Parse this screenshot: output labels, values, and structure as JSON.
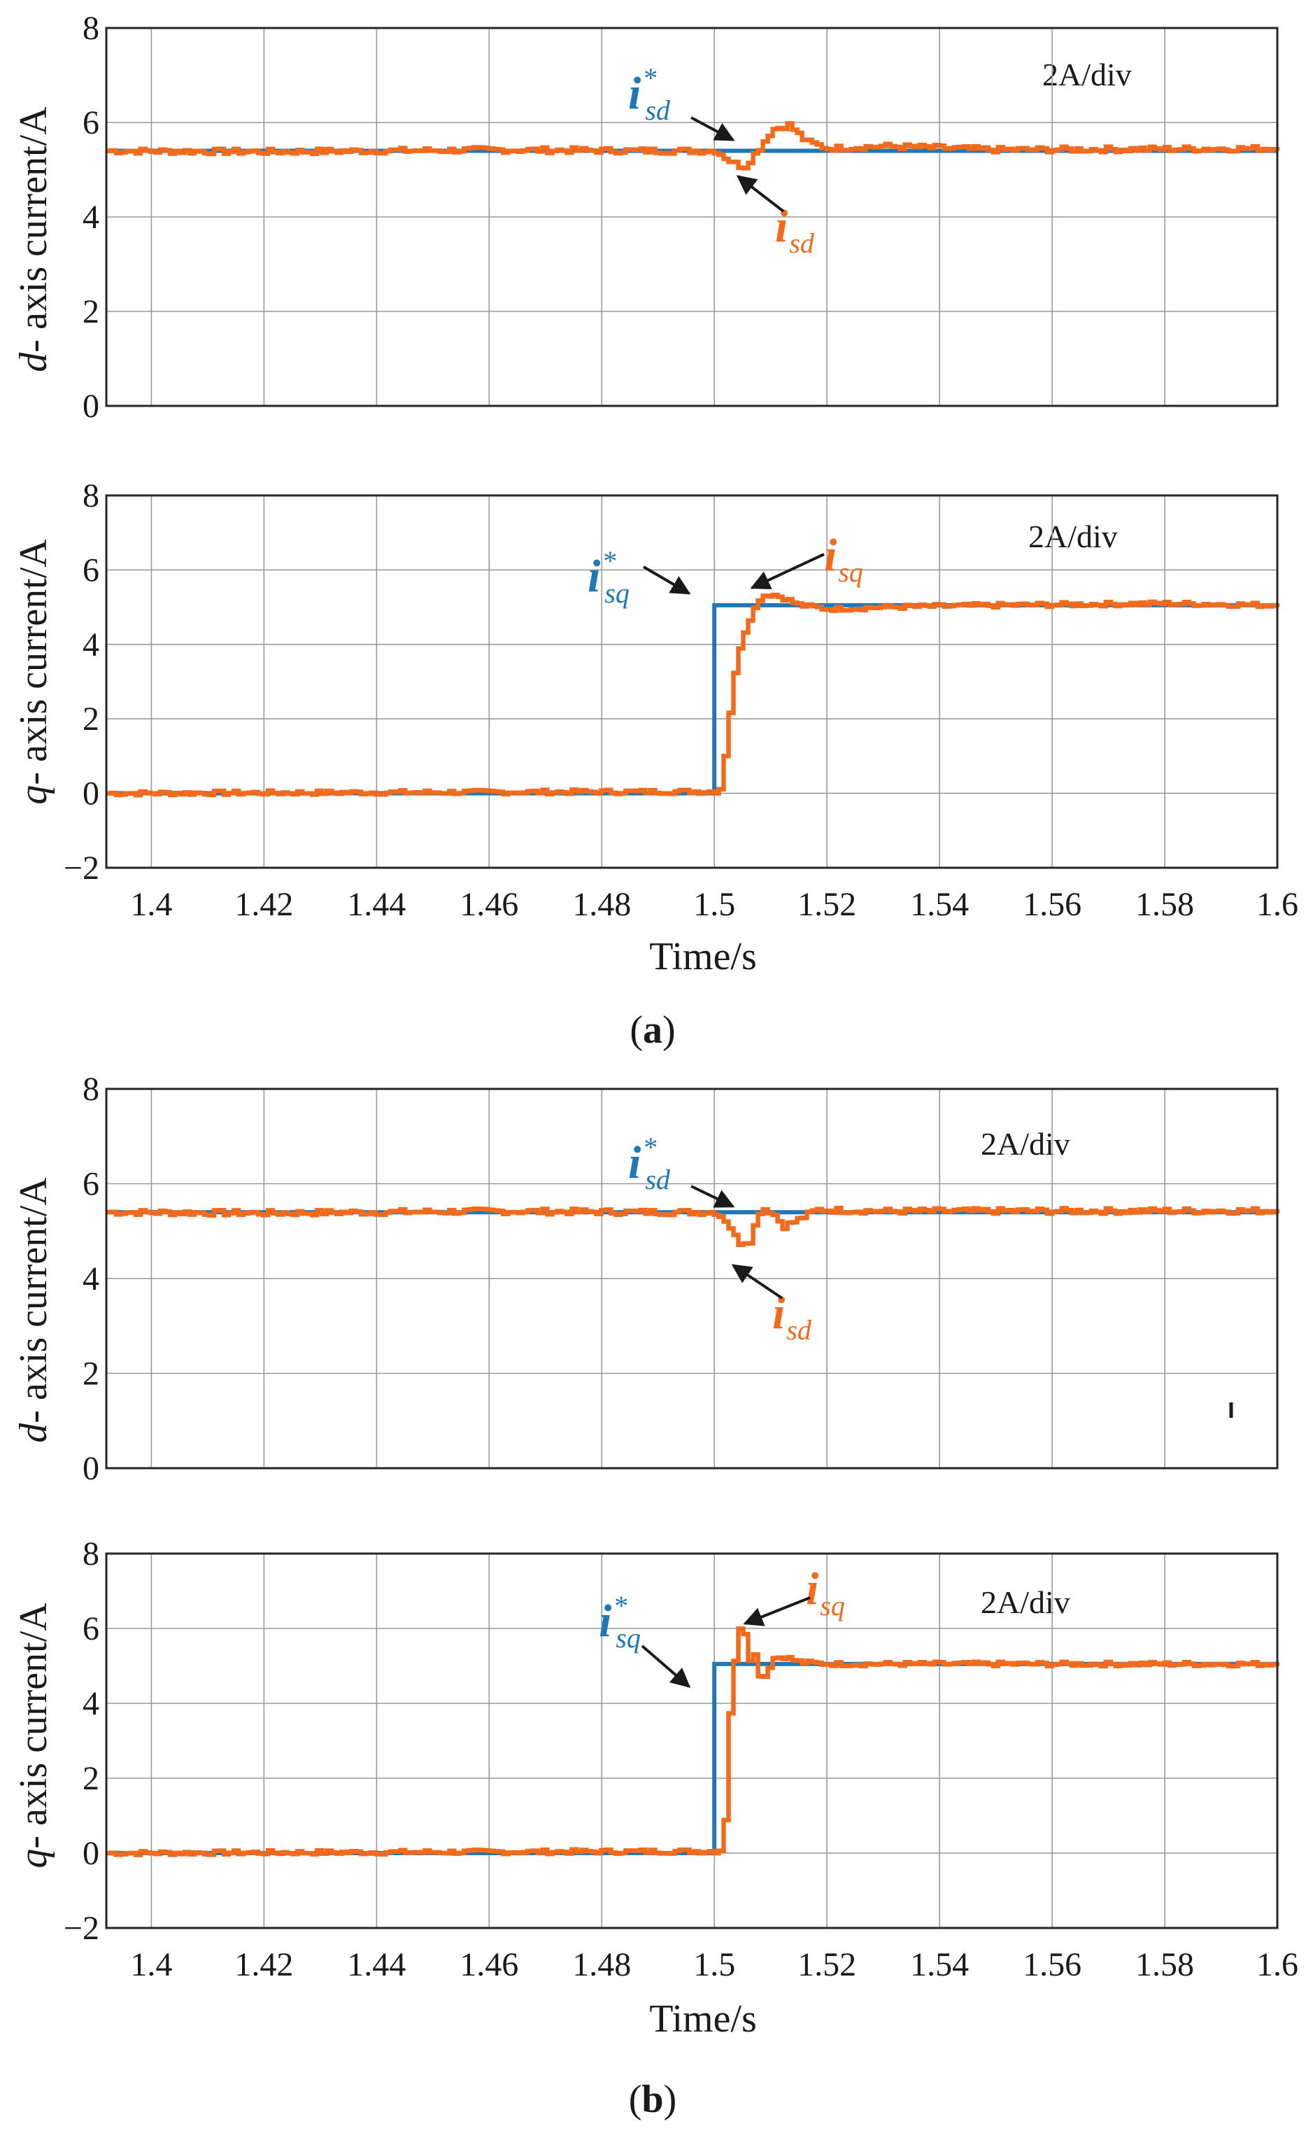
{
  "colors": {
    "reference": "#1f77b4",
    "measured": "#f26b1d",
    "text": "#1a1a1a",
    "grid": "#9a9a9a"
  },
  "figure": {
    "caption_a": "a",
    "caption_b": "b"
  },
  "chart_data": [
    {
      "id": "a-d",
      "type": "line",
      "panel": "a",
      "title": "",
      "ylabel": "d- axis current/A",
      "xlabel": "",
      "xlim": [
        1.392,
        1.6
      ],
      "ylim": [
        0,
        8
      ],
      "yticks": [
        0,
        2,
        4,
        6,
        8
      ],
      "xticks": [
        1.4,
        1.42,
        1.44,
        1.46,
        1.48,
        1.5,
        1.52,
        1.54,
        1.56,
        1.58,
        1.6
      ],
      "scale_label": "2A/div",
      "annotations": {
        "ref": {
          "sym": "i",
          "sup": "*",
          "sub": "sd"
        },
        "meas": {
          "sym": "i",
          "sub": "sd"
        }
      },
      "series": [
        {
          "name": "i*sd",
          "role": "reference",
          "x": [
            1.392,
            1.6
          ],
          "y": [
            5.4,
            5.4
          ]
        },
        {
          "name": "isd",
          "role": "measured",
          "x": [
            1.392,
            1.42,
            1.46,
            1.49,
            1.5,
            1.503,
            1.505,
            1.508,
            1.51,
            1.513,
            1.516,
            1.52,
            1.53,
            1.55,
            1.6
          ],
          "y": [
            5.4,
            5.38,
            5.42,
            5.4,
            5.4,
            5.15,
            5.05,
            5.5,
            5.85,
            5.95,
            5.6,
            5.45,
            5.5,
            5.42,
            5.45
          ]
        }
      ]
    },
    {
      "id": "a-q",
      "type": "line",
      "panel": "a",
      "title": "",
      "ylabel": "q- axis current/A",
      "xlabel": "Time/s",
      "xlim": [
        1.392,
        1.6
      ],
      "ylim": [
        -2,
        8
      ],
      "yticks": [
        -2,
        0,
        2,
        4,
        6,
        8
      ],
      "xticks": [
        1.4,
        1.42,
        1.44,
        1.46,
        1.48,
        1.5,
        1.52,
        1.54,
        1.56,
        1.58,
        1.6
      ],
      "tick_labels": [
        "1.4",
        "1.42",
        "1.44",
        "1.46",
        "1.48",
        "1.5",
        "1.52",
        "1.54",
        "1.56",
        "1.58",
        "1.6"
      ],
      "scale_label": "2A/div",
      "annotations": {
        "ref": {
          "sym": "i",
          "sup": "*",
          "sub": "sq"
        },
        "meas": {
          "sym": "i",
          "sub": "sq"
        }
      },
      "series": [
        {
          "name": "i*sq",
          "role": "reference",
          "x": [
            1.392,
            1.5,
            1.5,
            1.6
          ],
          "y": [
            0,
            0,
            5.05,
            5.05
          ]
        },
        {
          "name": "isq",
          "role": "measured",
          "x": [
            1.392,
            1.5,
            1.501,
            1.502,
            1.503,
            1.504,
            1.505,
            1.506,
            1.507,
            1.508,
            1.51,
            1.512,
            1.515,
            1.52,
            1.53,
            1.55,
            1.58,
            1.6
          ],
          "y": [
            0.0,
            0.05,
            0.15,
            1.5,
            2.8,
            3.8,
            4.3,
            4.7,
            5.0,
            5.3,
            5.35,
            5.25,
            5.05,
            4.95,
            5.0,
            5.05,
            5.1,
            5.05
          ]
        }
      ]
    },
    {
      "id": "b-d",
      "type": "line",
      "panel": "b",
      "title": "",
      "ylabel": "d- axis current/A",
      "xlabel": "",
      "xlim": [
        1.392,
        1.6
      ],
      "ylim": [
        0,
        8
      ],
      "yticks": [
        0,
        2,
        4,
        6,
        8
      ],
      "xticks": [
        1.4,
        1.42,
        1.44,
        1.46,
        1.48,
        1.5,
        1.52,
        1.54,
        1.56,
        1.58,
        1.6
      ],
      "scale_label": "2A/div",
      "annotations": {
        "ref": {
          "sym": "i",
          "sup": "*",
          "sub": "sd"
        },
        "meas": {
          "sym": "i",
          "sub": "sd"
        }
      },
      "series": [
        {
          "name": "i*sd",
          "role": "reference",
          "x": [
            1.392,
            1.6
          ],
          "y": [
            5.4,
            5.4
          ]
        },
        {
          "name": "isd",
          "role": "measured",
          "x": [
            1.392,
            1.42,
            1.46,
            1.49,
            1.5,
            1.502,
            1.504,
            1.506,
            1.508,
            1.51,
            1.512,
            1.514,
            1.518,
            1.53,
            1.6
          ],
          "y": [
            5.4,
            5.38,
            5.42,
            5.4,
            5.4,
            5.2,
            4.75,
            4.8,
            5.5,
            5.4,
            5.1,
            5.2,
            5.45,
            5.42,
            5.43
          ]
        }
      ]
    },
    {
      "id": "b-q",
      "type": "line",
      "panel": "b",
      "title": "",
      "ylabel": "q- axis current/A",
      "xlabel": "Time/s",
      "xlim": [
        1.392,
        1.6
      ],
      "ylim": [
        -2,
        8
      ],
      "yticks": [
        -2,
        0,
        2,
        4,
        6,
        8
      ],
      "xticks": [
        1.4,
        1.42,
        1.44,
        1.46,
        1.48,
        1.5,
        1.52,
        1.54,
        1.56,
        1.58,
        1.6
      ],
      "tick_labels": [
        "1.4",
        "1.42",
        "1.44",
        "1.46",
        "1.48",
        "1.5",
        "1.52",
        "1.54",
        "1.56",
        "1.58",
        "1.6"
      ],
      "scale_label": "2A/div",
      "annotations": {
        "ref": {
          "sym": "i",
          "sup": "*",
          "sub": "sq"
        },
        "meas": {
          "sym": "i",
          "sub": "sq"
        }
      },
      "series": [
        {
          "name": "i*sq",
          "role": "reference",
          "x": [
            1.392,
            1.5,
            1.5,
            1.6
          ],
          "y": [
            0,
            0,
            5.05,
            5.05
          ]
        },
        {
          "name": "isq",
          "role": "measured",
          "x": [
            1.392,
            1.5,
            1.5015,
            1.502,
            1.5025,
            1.503,
            1.5035,
            1.504,
            1.505,
            1.506,
            1.507,
            1.508,
            1.509,
            1.51,
            1.512,
            1.515,
            1.52,
            1.55,
            1.6
          ],
          "y": [
            0.0,
            0.05,
            0.1,
            2.7,
            3.7,
            4.7,
            5.2,
            6.05,
            6.0,
            5.2,
            5.3,
            4.6,
            4.8,
            5.2,
            5.25,
            5.1,
            5.05,
            5.05,
            5.05
          ]
        }
      ]
    }
  ]
}
